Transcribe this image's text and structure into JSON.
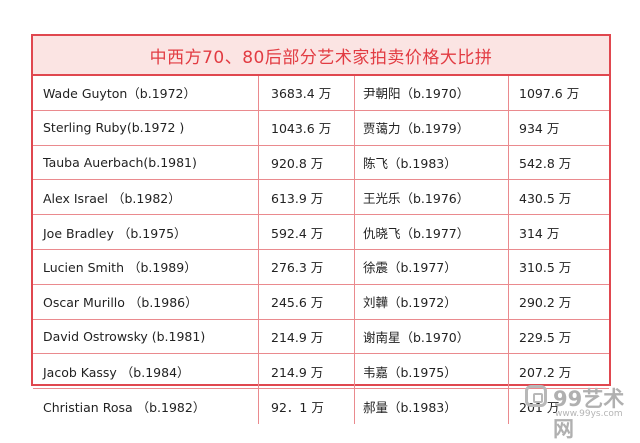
{
  "title": "中西方70、80后部分艺术家拍卖价格大比拼",
  "rows": [
    {
      "west_artist": "Wade Guyton（b.1972）",
      "west_price": "3683.4 万",
      "china_artist": "尹朝阳（b.1970）",
      "china_price": "1097.6 万"
    },
    {
      "west_artist": "Sterling Ruby(b.1972 )",
      "west_price": "1043.6 万",
      "china_artist": "贾蔼力（b.1979）",
      "china_price": "934 万"
    },
    {
      "west_artist": "Tauba Auerbach(b.1981)",
      "west_price": "920.8 万",
      "china_artist": "陈飞（b.1983）",
      "china_price": "542.8 万"
    },
    {
      "west_artist": "Alex Israel （b.1982）",
      "west_price": "613.9 万",
      "china_artist": "王光乐（b.1976）",
      "china_price": "430.5 万"
    },
    {
      "west_artist": "Joe Bradley （b.1975）",
      "west_price": "592.4 万",
      "china_artist": "仇晓飞（b.1977）",
      "china_price": "314 万"
    },
    {
      "west_artist": "Lucien Smith （b.1989）",
      "west_price": "276.3 万",
      "china_artist": "徐震（b.1977）",
      "china_price": "310.5 万"
    },
    {
      "west_artist": "Oscar Murillo （b.1986）",
      "west_price": "245.6 万",
      "china_artist": "刘韡（b.1972）",
      "china_price": "290.2 万"
    },
    {
      "west_artist": "David Ostrowsky (b.1981)",
      "west_price": "214.9 万",
      "china_artist": "谢南星（b.1970）",
      "china_price": "229.5 万"
    },
    {
      "west_artist": "Jacob Kassy （b.1984）",
      "west_price": "214.9 万",
      "china_artist": "韦嘉（b.1975）",
      "china_price": "207.2 万"
    },
    {
      "west_artist": "Christian Rosa （b.1982）",
      "west_price": "92．1 万",
      "china_artist": "郝量（b.1983）",
      "china_price": "201 万"
    }
  ],
  "watermark": {
    "brand": "99艺术网",
    "url": "www.99ys.com"
  },
  "colors": {
    "accent": "#e0474f",
    "title_bg": "#fbe4e3",
    "title_text": "#e23b42"
  }
}
